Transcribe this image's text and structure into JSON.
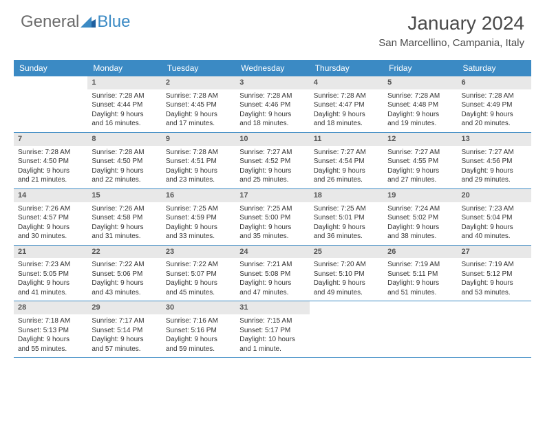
{
  "logo": {
    "first": "General",
    "second": "Blue"
  },
  "title": "January 2024",
  "location": "San Marcellino, Campania, Italy",
  "colors": {
    "header_bg": "#3b8ac4",
    "header_text": "#ffffff",
    "daynum_bg": "#e8e8e8",
    "text": "#333333",
    "logo_gray": "#6b6b6b",
    "logo_blue": "#3b8ac4"
  },
  "weekdays": [
    "Sunday",
    "Monday",
    "Tuesday",
    "Wednesday",
    "Thursday",
    "Friday",
    "Saturday"
  ],
  "weeks": [
    [
      null,
      {
        "n": "1",
        "sr": "Sunrise: 7:28 AM",
        "ss": "Sunset: 4:44 PM",
        "d1": "Daylight: 9 hours",
        "d2": "and 16 minutes."
      },
      {
        "n": "2",
        "sr": "Sunrise: 7:28 AM",
        "ss": "Sunset: 4:45 PM",
        "d1": "Daylight: 9 hours",
        "d2": "and 17 minutes."
      },
      {
        "n": "3",
        "sr": "Sunrise: 7:28 AM",
        "ss": "Sunset: 4:46 PM",
        "d1": "Daylight: 9 hours",
        "d2": "and 18 minutes."
      },
      {
        "n": "4",
        "sr": "Sunrise: 7:28 AM",
        "ss": "Sunset: 4:47 PM",
        "d1": "Daylight: 9 hours",
        "d2": "and 18 minutes."
      },
      {
        "n": "5",
        "sr": "Sunrise: 7:28 AM",
        "ss": "Sunset: 4:48 PM",
        "d1": "Daylight: 9 hours",
        "d2": "and 19 minutes."
      },
      {
        "n": "6",
        "sr": "Sunrise: 7:28 AM",
        "ss": "Sunset: 4:49 PM",
        "d1": "Daylight: 9 hours",
        "d2": "and 20 minutes."
      }
    ],
    [
      {
        "n": "7",
        "sr": "Sunrise: 7:28 AM",
        "ss": "Sunset: 4:50 PM",
        "d1": "Daylight: 9 hours",
        "d2": "and 21 minutes."
      },
      {
        "n": "8",
        "sr": "Sunrise: 7:28 AM",
        "ss": "Sunset: 4:50 PM",
        "d1": "Daylight: 9 hours",
        "d2": "and 22 minutes."
      },
      {
        "n": "9",
        "sr": "Sunrise: 7:28 AM",
        "ss": "Sunset: 4:51 PM",
        "d1": "Daylight: 9 hours",
        "d2": "and 23 minutes."
      },
      {
        "n": "10",
        "sr": "Sunrise: 7:27 AM",
        "ss": "Sunset: 4:52 PM",
        "d1": "Daylight: 9 hours",
        "d2": "and 25 minutes."
      },
      {
        "n": "11",
        "sr": "Sunrise: 7:27 AM",
        "ss": "Sunset: 4:54 PM",
        "d1": "Daylight: 9 hours",
        "d2": "and 26 minutes."
      },
      {
        "n": "12",
        "sr": "Sunrise: 7:27 AM",
        "ss": "Sunset: 4:55 PM",
        "d1": "Daylight: 9 hours",
        "d2": "and 27 minutes."
      },
      {
        "n": "13",
        "sr": "Sunrise: 7:27 AM",
        "ss": "Sunset: 4:56 PM",
        "d1": "Daylight: 9 hours",
        "d2": "and 29 minutes."
      }
    ],
    [
      {
        "n": "14",
        "sr": "Sunrise: 7:26 AM",
        "ss": "Sunset: 4:57 PM",
        "d1": "Daylight: 9 hours",
        "d2": "and 30 minutes."
      },
      {
        "n": "15",
        "sr": "Sunrise: 7:26 AM",
        "ss": "Sunset: 4:58 PM",
        "d1": "Daylight: 9 hours",
        "d2": "and 31 minutes."
      },
      {
        "n": "16",
        "sr": "Sunrise: 7:25 AM",
        "ss": "Sunset: 4:59 PM",
        "d1": "Daylight: 9 hours",
        "d2": "and 33 minutes."
      },
      {
        "n": "17",
        "sr": "Sunrise: 7:25 AM",
        "ss": "Sunset: 5:00 PM",
        "d1": "Daylight: 9 hours",
        "d2": "and 35 minutes."
      },
      {
        "n": "18",
        "sr": "Sunrise: 7:25 AM",
        "ss": "Sunset: 5:01 PM",
        "d1": "Daylight: 9 hours",
        "d2": "and 36 minutes."
      },
      {
        "n": "19",
        "sr": "Sunrise: 7:24 AM",
        "ss": "Sunset: 5:02 PM",
        "d1": "Daylight: 9 hours",
        "d2": "and 38 minutes."
      },
      {
        "n": "20",
        "sr": "Sunrise: 7:23 AM",
        "ss": "Sunset: 5:04 PM",
        "d1": "Daylight: 9 hours",
        "d2": "and 40 minutes."
      }
    ],
    [
      {
        "n": "21",
        "sr": "Sunrise: 7:23 AM",
        "ss": "Sunset: 5:05 PM",
        "d1": "Daylight: 9 hours",
        "d2": "and 41 minutes."
      },
      {
        "n": "22",
        "sr": "Sunrise: 7:22 AM",
        "ss": "Sunset: 5:06 PM",
        "d1": "Daylight: 9 hours",
        "d2": "and 43 minutes."
      },
      {
        "n": "23",
        "sr": "Sunrise: 7:22 AM",
        "ss": "Sunset: 5:07 PM",
        "d1": "Daylight: 9 hours",
        "d2": "and 45 minutes."
      },
      {
        "n": "24",
        "sr": "Sunrise: 7:21 AM",
        "ss": "Sunset: 5:08 PM",
        "d1": "Daylight: 9 hours",
        "d2": "and 47 minutes."
      },
      {
        "n": "25",
        "sr": "Sunrise: 7:20 AM",
        "ss": "Sunset: 5:10 PM",
        "d1": "Daylight: 9 hours",
        "d2": "and 49 minutes."
      },
      {
        "n": "26",
        "sr": "Sunrise: 7:19 AM",
        "ss": "Sunset: 5:11 PM",
        "d1": "Daylight: 9 hours",
        "d2": "and 51 minutes."
      },
      {
        "n": "27",
        "sr": "Sunrise: 7:19 AM",
        "ss": "Sunset: 5:12 PM",
        "d1": "Daylight: 9 hours",
        "d2": "and 53 minutes."
      }
    ],
    [
      {
        "n": "28",
        "sr": "Sunrise: 7:18 AM",
        "ss": "Sunset: 5:13 PM",
        "d1": "Daylight: 9 hours",
        "d2": "and 55 minutes."
      },
      {
        "n": "29",
        "sr": "Sunrise: 7:17 AM",
        "ss": "Sunset: 5:14 PM",
        "d1": "Daylight: 9 hours",
        "d2": "and 57 minutes."
      },
      {
        "n": "30",
        "sr": "Sunrise: 7:16 AM",
        "ss": "Sunset: 5:16 PM",
        "d1": "Daylight: 9 hours",
        "d2": "and 59 minutes."
      },
      {
        "n": "31",
        "sr": "Sunrise: 7:15 AM",
        "ss": "Sunset: 5:17 PM",
        "d1": "Daylight: 10 hours",
        "d2": "and 1 minute."
      },
      null,
      null,
      null
    ]
  ]
}
